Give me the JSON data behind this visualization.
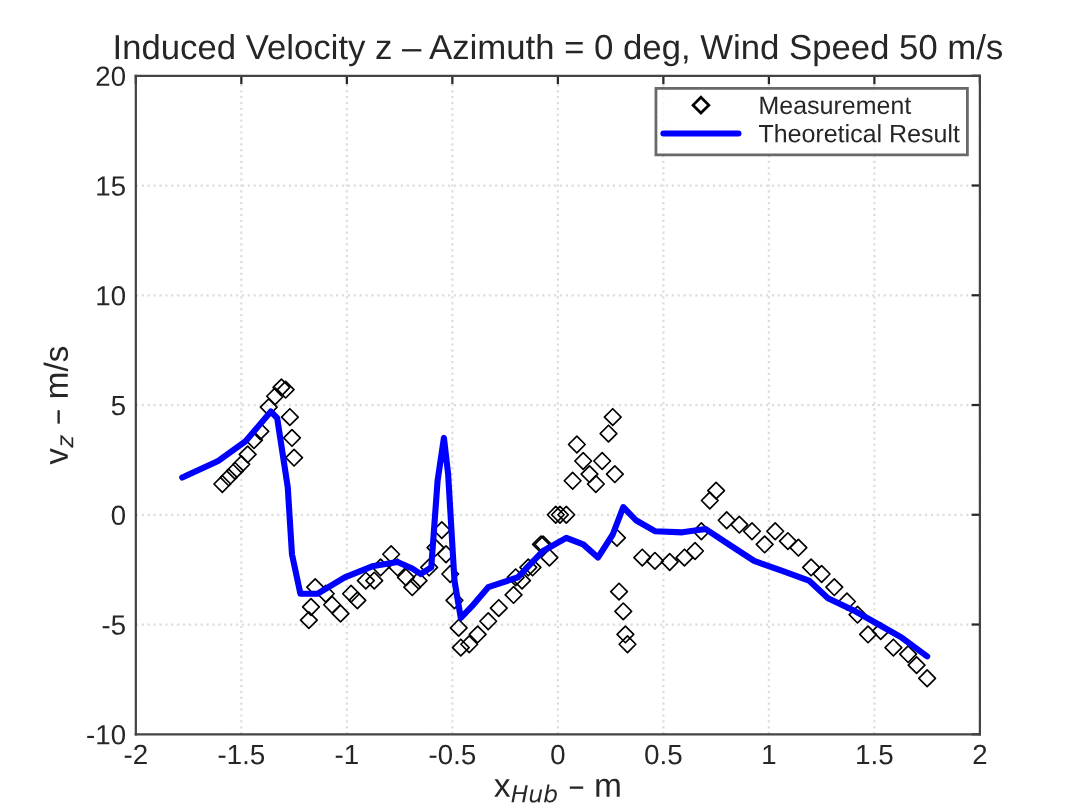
{
  "chart_data": {
    "type": "line",
    "title": "Induced Velocity z – Azimuth = 0 deg, Wind Speed 50 m/s",
    "xlabel": "x$_{Hub}$ – m",
    "ylabel": "v$_{z}$ – m/s",
    "xlim": [
      -2,
      2
    ],
    "xticks": [
      -2,
      -1.5,
      -1,
      -0.5,
      0,
      0.5,
      1,
      1.5,
      2
    ],
    "ylim": [
      -10,
      20
    ],
    "yticks": [
      -10,
      -5,
      0,
      5,
      10,
      15,
      20
    ],
    "grid": true,
    "legend": "top right",
    "series": [
      {
        "name": "Measurement",
        "type": "scatter",
        "marker": "diamond",
        "color": "#000000",
        "x": [
          -1.59,
          -1.56,
          -1.53,
          -1.5,
          -1.47,
          -1.44,
          -1.41,
          -1.37,
          -1.34,
          -1.31,
          -1.29,
          -1.27,
          -1.26,
          -1.25,
          -1.18,
          -1.17,
          -1.15,
          -1.1,
          -1.07,
          -1.03,
          -0.98,
          -0.95,
          -0.91,
          -0.87,
          -0.84,
          -0.79,
          -0.76,
          -0.72,
          -0.69,
          -0.66,
          -0.61,
          -0.58,
          -0.55,
          -0.53,
          -0.51,
          -0.49,
          -0.47,
          -0.46,
          -0.42,
          -0.38,
          -0.33,
          -0.28,
          -0.21,
          -0.17,
          -0.12,
          -0.07,
          -0.01,
          -0.2,
          -0.14,
          -0.08,
          -0.04,
          0.01,
          0.04,
          0.07,
          0.09,
          0.12,
          0.15,
          0.18,
          0.21,
          0.24,
          0.26,
          0.27,
          0.28,
          0.29,
          0.31,
          0.32,
          0.33,
          0.4,
          0.46,
          0.53,
          0.6,
          0.65,
          0.68,
          0.72,
          0.75,
          0.8,
          0.86,
          0.92,
          0.98,
          1.03,
          1.09,
          1.14,
          1.2,
          1.25,
          1.31,
          1.37,
          1.42,
          1.47,
          1.53,
          1.59,
          1.66,
          1.7,
          1.75
        ],
        "values": [
          1.4,
          1.7,
          2.0,
          2.3,
          2.75,
          3.4,
          3.8,
          4.9,
          5.4,
          5.8,
          5.7,
          4.45,
          3.5,
          2.6,
          -4.8,
          -4.2,
          -3.3,
          -3.6,
          -4.1,
          -4.5,
          -3.6,
          -3.9,
          -3.0,
          -3.0,
          -2.4,
          -1.8,
          -2.4,
          -2.85,
          -3.3,
          -3.0,
          -2.4,
          -1.5,
          -0.7,
          -1.8,
          -2.7,
          -3.9,
          -5.15,
          -6.05,
          -5.9,
          -5.45,
          -4.85,
          -4.25,
          -3.65,
          -3.0,
          -2.4,
          -1.35,
          0.0,
          -2.85,
          -2.4,
          -1.35,
          -1.95,
          0.0,
          0.0,
          1.55,
          3.2,
          2.45,
          1.85,
          1.4,
          2.45,
          3.7,
          4.45,
          1.85,
          -1.05,
          -3.5,
          -4.4,
          -5.45,
          -5.9,
          -1.95,
          -2.1,
          -2.15,
          -1.95,
          -1.65,
          -0.75,
          0.65,
          1.1,
          -0.25,
          -0.45,
          -0.75,
          -1.35,
          -0.75,
          -1.2,
          -1.5,
          -2.4,
          -2.7,
          -3.3,
          -3.95,
          -4.55,
          -5.45,
          -5.3,
          -6.05,
          -6.35,
          -6.85,
          -7.45
        ]
      },
      {
        "name": "Theoretical Result",
        "color": "#0000ff",
        "x": [
          -1.78,
          -1.61,
          -1.48,
          -1.36,
          -1.33,
          -1.28,
          -1.26,
          -1.22,
          -1.14,
          -1.01,
          -0.88,
          -0.76,
          -0.69,
          -0.65,
          -0.6,
          -0.57,
          -0.54,
          -0.52,
          -0.49,
          -0.46,
          -0.41,
          -0.33,
          -0.19,
          -0.07,
          0.04,
          0.12,
          0.19,
          0.26,
          0.31,
          0.37,
          0.46,
          0.59,
          0.7,
          0.81,
          0.93,
          1.06,
          1.19,
          1.28,
          1.41,
          1.52,
          1.63,
          1.75
        ],
        "values": [
          1.7,
          2.45,
          3.35,
          4.7,
          4.4,
          1.25,
          -1.8,
          -3.6,
          -3.6,
          -2.85,
          -2.35,
          -2.15,
          -2.45,
          -2.7,
          -2.4,
          1.55,
          3.5,
          1.85,
          -3.0,
          -4.7,
          -4.2,
          -3.3,
          -2.85,
          -1.65,
          -1.05,
          -1.35,
          -1.95,
          -0.9,
          0.35,
          -0.25,
          -0.75,
          -0.8,
          -0.65,
          -1.35,
          -2.1,
          -2.55,
          -3.0,
          -3.8,
          -4.4,
          -5.0,
          -5.6,
          -6.45
        ]
      }
    ]
  }
}
